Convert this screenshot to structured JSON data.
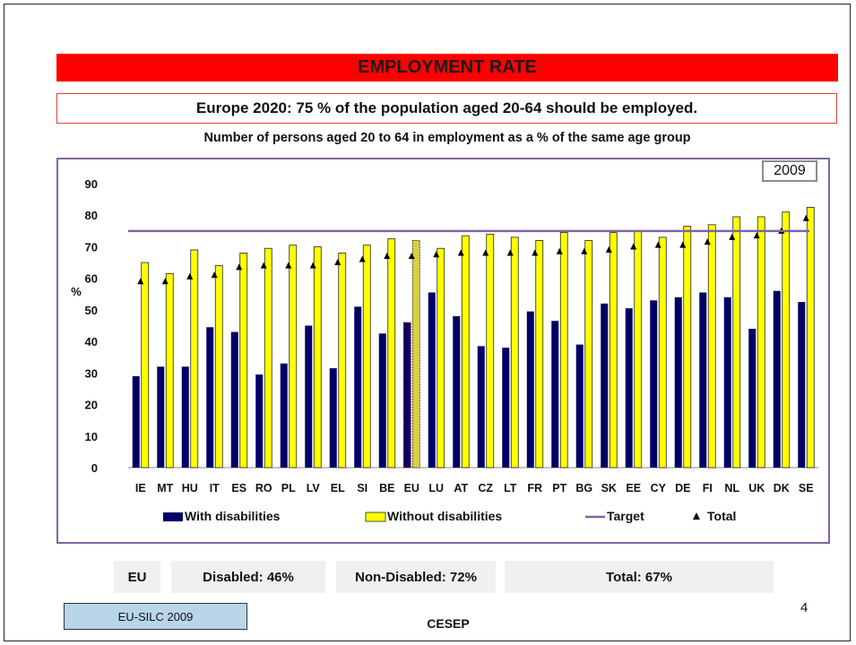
{
  "slide": {
    "title": "EMPLOYMENT RATE",
    "goal": "Europe 2020: 75 % of the population aged 20-64 should be employed.",
    "subtitle": "Number of persons aged 20 to 64 in employment as a % of the same age group",
    "year": "2009",
    "page_number": "4",
    "source": "EU-SILC 2009",
    "organization": "CESEP",
    "title_color": "#ff0000",
    "source_color": "#b9d5e8"
  },
  "summary": {
    "region": "EU",
    "disabled": "Disabled: 46%",
    "non_disabled": "Non-Disabled: 72%",
    "total": "Total: 67%"
  },
  "chart_data": {
    "type": "bar",
    "ylabel": "%",
    "ylim": [
      0,
      90
    ],
    "yticks": [
      0,
      10,
      20,
      30,
      40,
      50,
      60,
      70,
      80,
      90
    ],
    "grid": false,
    "legend_position": "bottom",
    "categories": [
      "IE",
      "MT",
      "HU",
      "IT",
      "ES",
      "RO",
      "PL",
      "LV",
      "EL",
      "SI",
      "BE",
      "EU",
      "LU",
      "AT",
      "CZ",
      "LT",
      "FR",
      "PT",
      "BG",
      "SK",
      "EE",
      "CY",
      "DE",
      "FI",
      "NL",
      "UK",
      "DK",
      "SE"
    ],
    "highlight_category": "EU",
    "series": [
      {
        "name": "With disabilities",
        "color": "#000066",
        "values": [
          29,
          32,
          32,
          44.5,
          43,
          29.5,
          33,
          45,
          31.5,
          51,
          42.5,
          46,
          55.5,
          48,
          38.5,
          38,
          49.5,
          46.5,
          39,
          52,
          50.5,
          53,
          54,
          55.5,
          54,
          44,
          56,
          52.5
        ]
      },
      {
        "name": "Without disabilities",
        "color": "#ffff00",
        "values": [
          65,
          61.5,
          69,
          64,
          68,
          69.5,
          70.5,
          70,
          68,
          70.5,
          72.5,
          72,
          69.5,
          73.5,
          74,
          73,
          72,
          74.5,
          72,
          74.5,
          75,
          73,
          76.5,
          77,
          79.5,
          79.5,
          81,
          82.5
        ]
      },
      {
        "name": "Target",
        "type": "line",
        "color": "#8064a2",
        "value": 75
      },
      {
        "name": "Total",
        "type": "marker",
        "color": "#000000",
        "values": [
          59,
          59,
          60.5,
          61,
          63.5,
          64,
          64,
          64,
          65,
          66,
          67,
          67,
          67.5,
          68,
          68,
          68,
          68,
          68.5,
          68.5,
          69,
          70,
          70.5,
          70.5,
          71.5,
          73,
          73.5,
          75,
          79
        ]
      }
    ]
  }
}
